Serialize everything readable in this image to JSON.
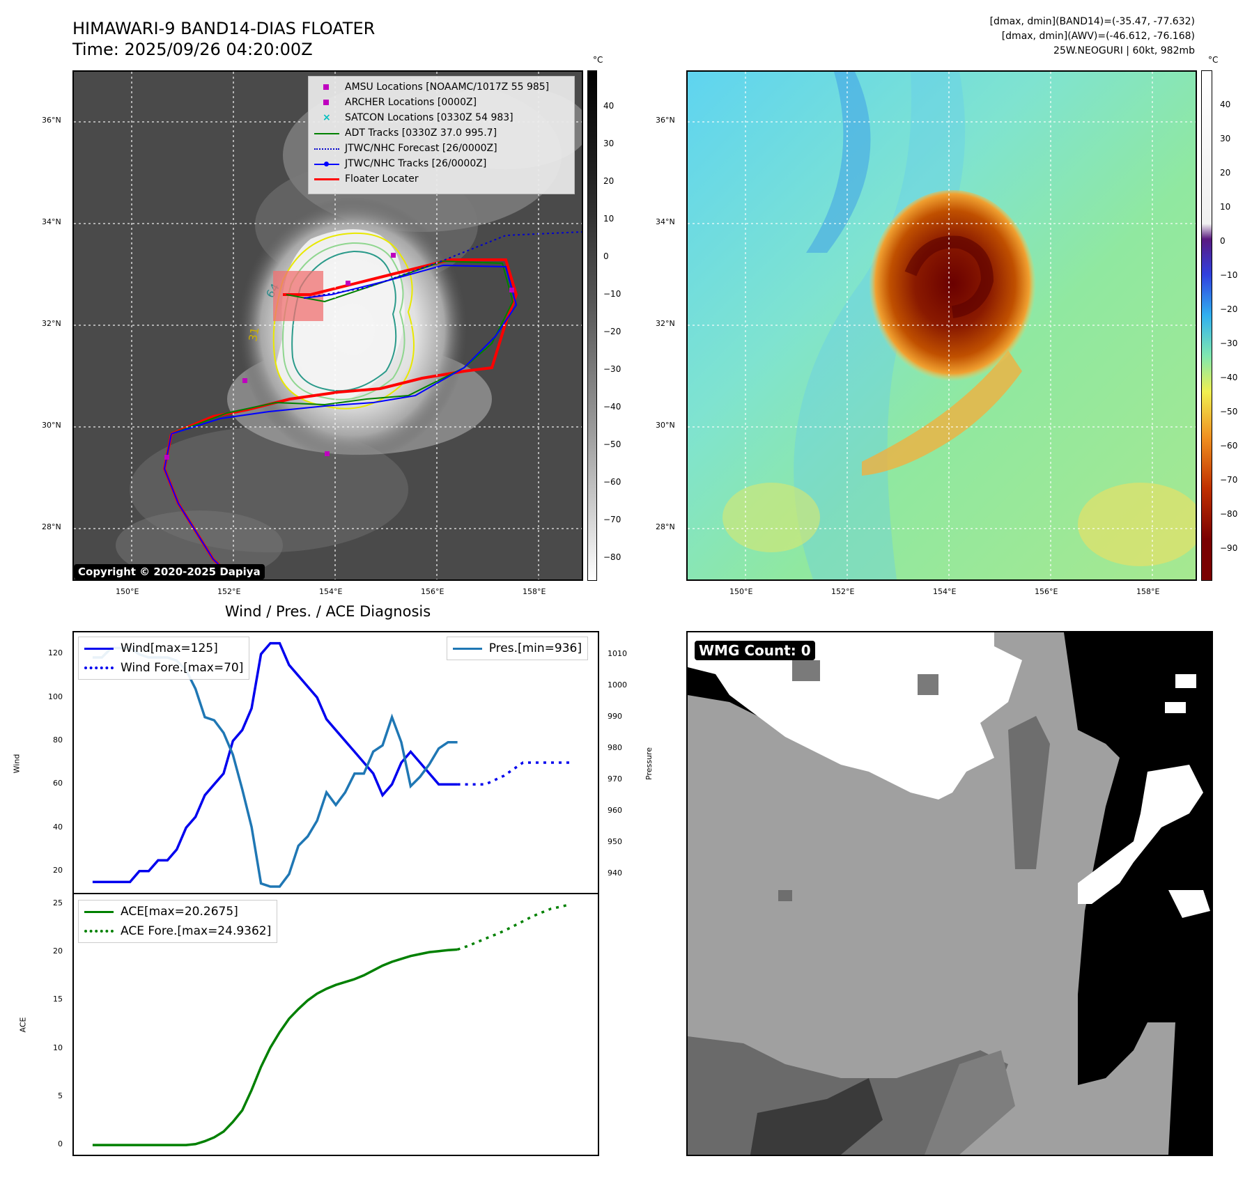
{
  "header": {
    "title_line1": "HIMAWARI-9 BAND14-DIAS FLOATER",
    "title_line2": "Time: 2025/09/26 04:20:00Z",
    "info_line1": "[dmax, dmin](BAND14)=(-35.47, -77.632)",
    "info_line2": "[dmax, dmin](AWV)=(-46.612, -76.168)",
    "info_line3": "25W.NEOGURI | 60kt, 982mb"
  },
  "map_axes": {
    "lat_labels": [
      "36°N",
      "34°N",
      "32°N",
      "30°N",
      "28°N"
    ],
    "lon_labels": [
      "150°E",
      "152°E",
      "154°E",
      "156°E",
      "158°E"
    ]
  },
  "ir_panel": {
    "colorbar_unit": "°C",
    "colorbar_ticks": [
      "40",
      "30",
      "20",
      "10",
      "0",
      "−10",
      "−20",
      "−30",
      "−40",
      "−50",
      "−60",
      "−70",
      "−80"
    ],
    "copyright": "Copyright © 2020-2025 Dapiya",
    "contour_labels": [
      "64",
      "31"
    ],
    "legend": [
      {
        "label": "AMSU Locations [NOAAMC/1017Z 55 985]",
        "color": "#bf00bf",
        "kind": "square"
      },
      {
        "label": "ARCHER Locations [0000Z]",
        "color": "#bf00bf",
        "kind": "square"
      },
      {
        "label": "SATCON Locations [0330Z 54 983]",
        "color": "#00bfbf",
        "kind": "x"
      },
      {
        "label": "ADT Tracks [0330Z 37.0 995.7]",
        "color": "#008000",
        "kind": "line"
      },
      {
        "label": "JTWC/NHC Forecast [26/0000Z]",
        "color": "#0000cc",
        "kind": "dotted"
      },
      {
        "label": "JTWC/NHC Tracks [26/0000Z]",
        "color": "#0000ff",
        "kind": "linedot"
      },
      {
        "label": "Floater Locater",
        "color": "#ff0000",
        "kind": "line"
      }
    ]
  },
  "wv_panel": {
    "colorbar_unit": "°C",
    "colorbar_ticks": [
      "40",
      "30",
      "20",
      "10",
      "0",
      "−10",
      "−20",
      "−30",
      "−40",
      "−50",
      "−60",
      "−70",
      "−80",
      "−90"
    ]
  },
  "diag": {
    "title": "Wind / Pres. / ACE Diagnosis",
    "wind_ylabel": "Wind",
    "pres_ylabel": "Pressure",
    "ace_ylabel": "ACE",
    "wind_ticks": [
      "120",
      "100",
      "80",
      "60",
      "40",
      "20"
    ],
    "pres_ticks": [
      "1010",
      "1000",
      "990",
      "980",
      "970",
      "960",
      "950",
      "940"
    ],
    "ace_ticks": [
      "25",
      "20",
      "15",
      "10",
      "5",
      "0"
    ],
    "legend_wind": "Wind[max=125]",
    "legend_wind_fore": "Wind Fore.[max=70]",
    "legend_pres": "Pres.[min=936]",
    "legend_ace": "ACE[max=20.2675]",
    "legend_ace_fore": "ACE Fore.[max=24.9362]"
  },
  "wmg_panel": {
    "badge": "WMG Count: 0"
  },
  "chart_data": {
    "type": "line",
    "title": "Wind / Pres. / ACE Diagnosis",
    "series": [
      {
        "name": "Wind[max=125]",
        "axis": "wind",
        "color": "#0000ee",
        "style": "solid",
        "x": [
          0,
          1,
          2,
          3,
          4,
          5,
          6,
          7,
          8,
          9,
          10,
          11,
          12,
          13,
          14,
          15,
          16,
          17,
          18,
          19,
          20,
          21,
          22,
          23,
          24,
          25,
          26,
          27,
          28,
          29,
          30,
          31,
          32,
          33,
          34,
          35,
          36,
          37,
          38,
          39
        ],
        "values": [
          15,
          15,
          15,
          15,
          15,
          20,
          20,
          25,
          25,
          30,
          40,
          45,
          55,
          60,
          65,
          80,
          85,
          95,
          120,
          125,
          125,
          115,
          110,
          105,
          100,
          90,
          85,
          80,
          75,
          70,
          65,
          55,
          60,
          70,
          75,
          70,
          65,
          60,
          60,
          60
        ]
      },
      {
        "name": "Wind Fore.[max=70]",
        "axis": "wind",
        "color": "#0000ee",
        "style": "dotted",
        "x": [
          39,
          40,
          41,
          42,
          43,
          44,
          45,
          46,
          47,
          48,
          49,
          50,
          51
        ],
        "values": [
          60,
          60,
          60,
          60,
          62,
          64,
          67,
          70,
          70,
          70,
          70,
          70,
          70
        ]
      },
      {
        "name": "Pres.[min=936]",
        "axis": "pres",
        "color": "#1f77b4",
        "style": "solid",
        "x": [
          0,
          1,
          2,
          3,
          4,
          5,
          6,
          7,
          8,
          9,
          10,
          11,
          12,
          13,
          14,
          15,
          16,
          17,
          18,
          19,
          20,
          21,
          22,
          23,
          24,
          25,
          26,
          27,
          28,
          29,
          30,
          31,
          32,
          33,
          34,
          35,
          36,
          37,
          38,
          39
        ],
        "values": [
          1009,
          1009,
          1012,
          1012,
          1012,
          1010,
          1009,
          1009,
          1009,
          1008,
          1005,
          999,
          990,
          989,
          985,
          978,
          967,
          955,
          937,
          936,
          936,
          940,
          949,
          952,
          957,
          966,
          962,
          966,
          972,
          972,
          979,
          981,
          990,
          982,
          968,
          971,
          975,
          980,
          982,
          982
        ]
      },
      {
        "name": "ACE[max=20.2675]",
        "axis": "ace",
        "color": "#008000",
        "style": "solid",
        "x": [
          0,
          1,
          2,
          3,
          4,
          5,
          6,
          7,
          8,
          9,
          10,
          11,
          12,
          13,
          14,
          15,
          16,
          17,
          18,
          19,
          20,
          21,
          22,
          23,
          24,
          25,
          26,
          27,
          28,
          29,
          30,
          31,
          32,
          33,
          34,
          35,
          36,
          37,
          38,
          39
        ],
        "values": [
          0,
          0,
          0,
          0,
          0,
          0,
          0,
          0,
          0,
          0,
          0,
          0.1,
          0.4,
          0.8,
          1.4,
          2.4,
          3.6,
          5.7,
          8.1,
          10.1,
          11.7,
          13.1,
          14.1,
          15.0,
          15.7,
          16.2,
          16.6,
          16.9,
          17.2,
          17.6,
          18.1,
          18.6,
          19.0,
          19.3,
          19.6,
          19.8,
          20.0,
          20.1,
          20.2,
          20.2675
        ]
      },
      {
        "name": "ACE Fore.[max=24.9362]",
        "axis": "ace",
        "color": "#008000",
        "style": "dotted",
        "x": [
          39,
          40,
          41,
          42,
          43,
          44,
          45,
          46,
          47,
          48,
          49,
          50,
          51
        ],
        "values": [
          20.2675,
          20.6,
          21.0,
          21.4,
          21.8,
          22.2,
          22.7,
          23.2,
          23.7,
          24.1,
          24.5,
          24.7,
          24.9362
        ]
      }
    ],
    "wind_ylim": [
      10,
      130
    ],
    "pres_ylim": [
      934,
      1017
    ],
    "ace_ylim": [
      -1,
      26
    ],
    "xlim": [
      -2,
      54
    ],
    "grid": false,
    "legend_placement": "top-left, top-right"
  }
}
